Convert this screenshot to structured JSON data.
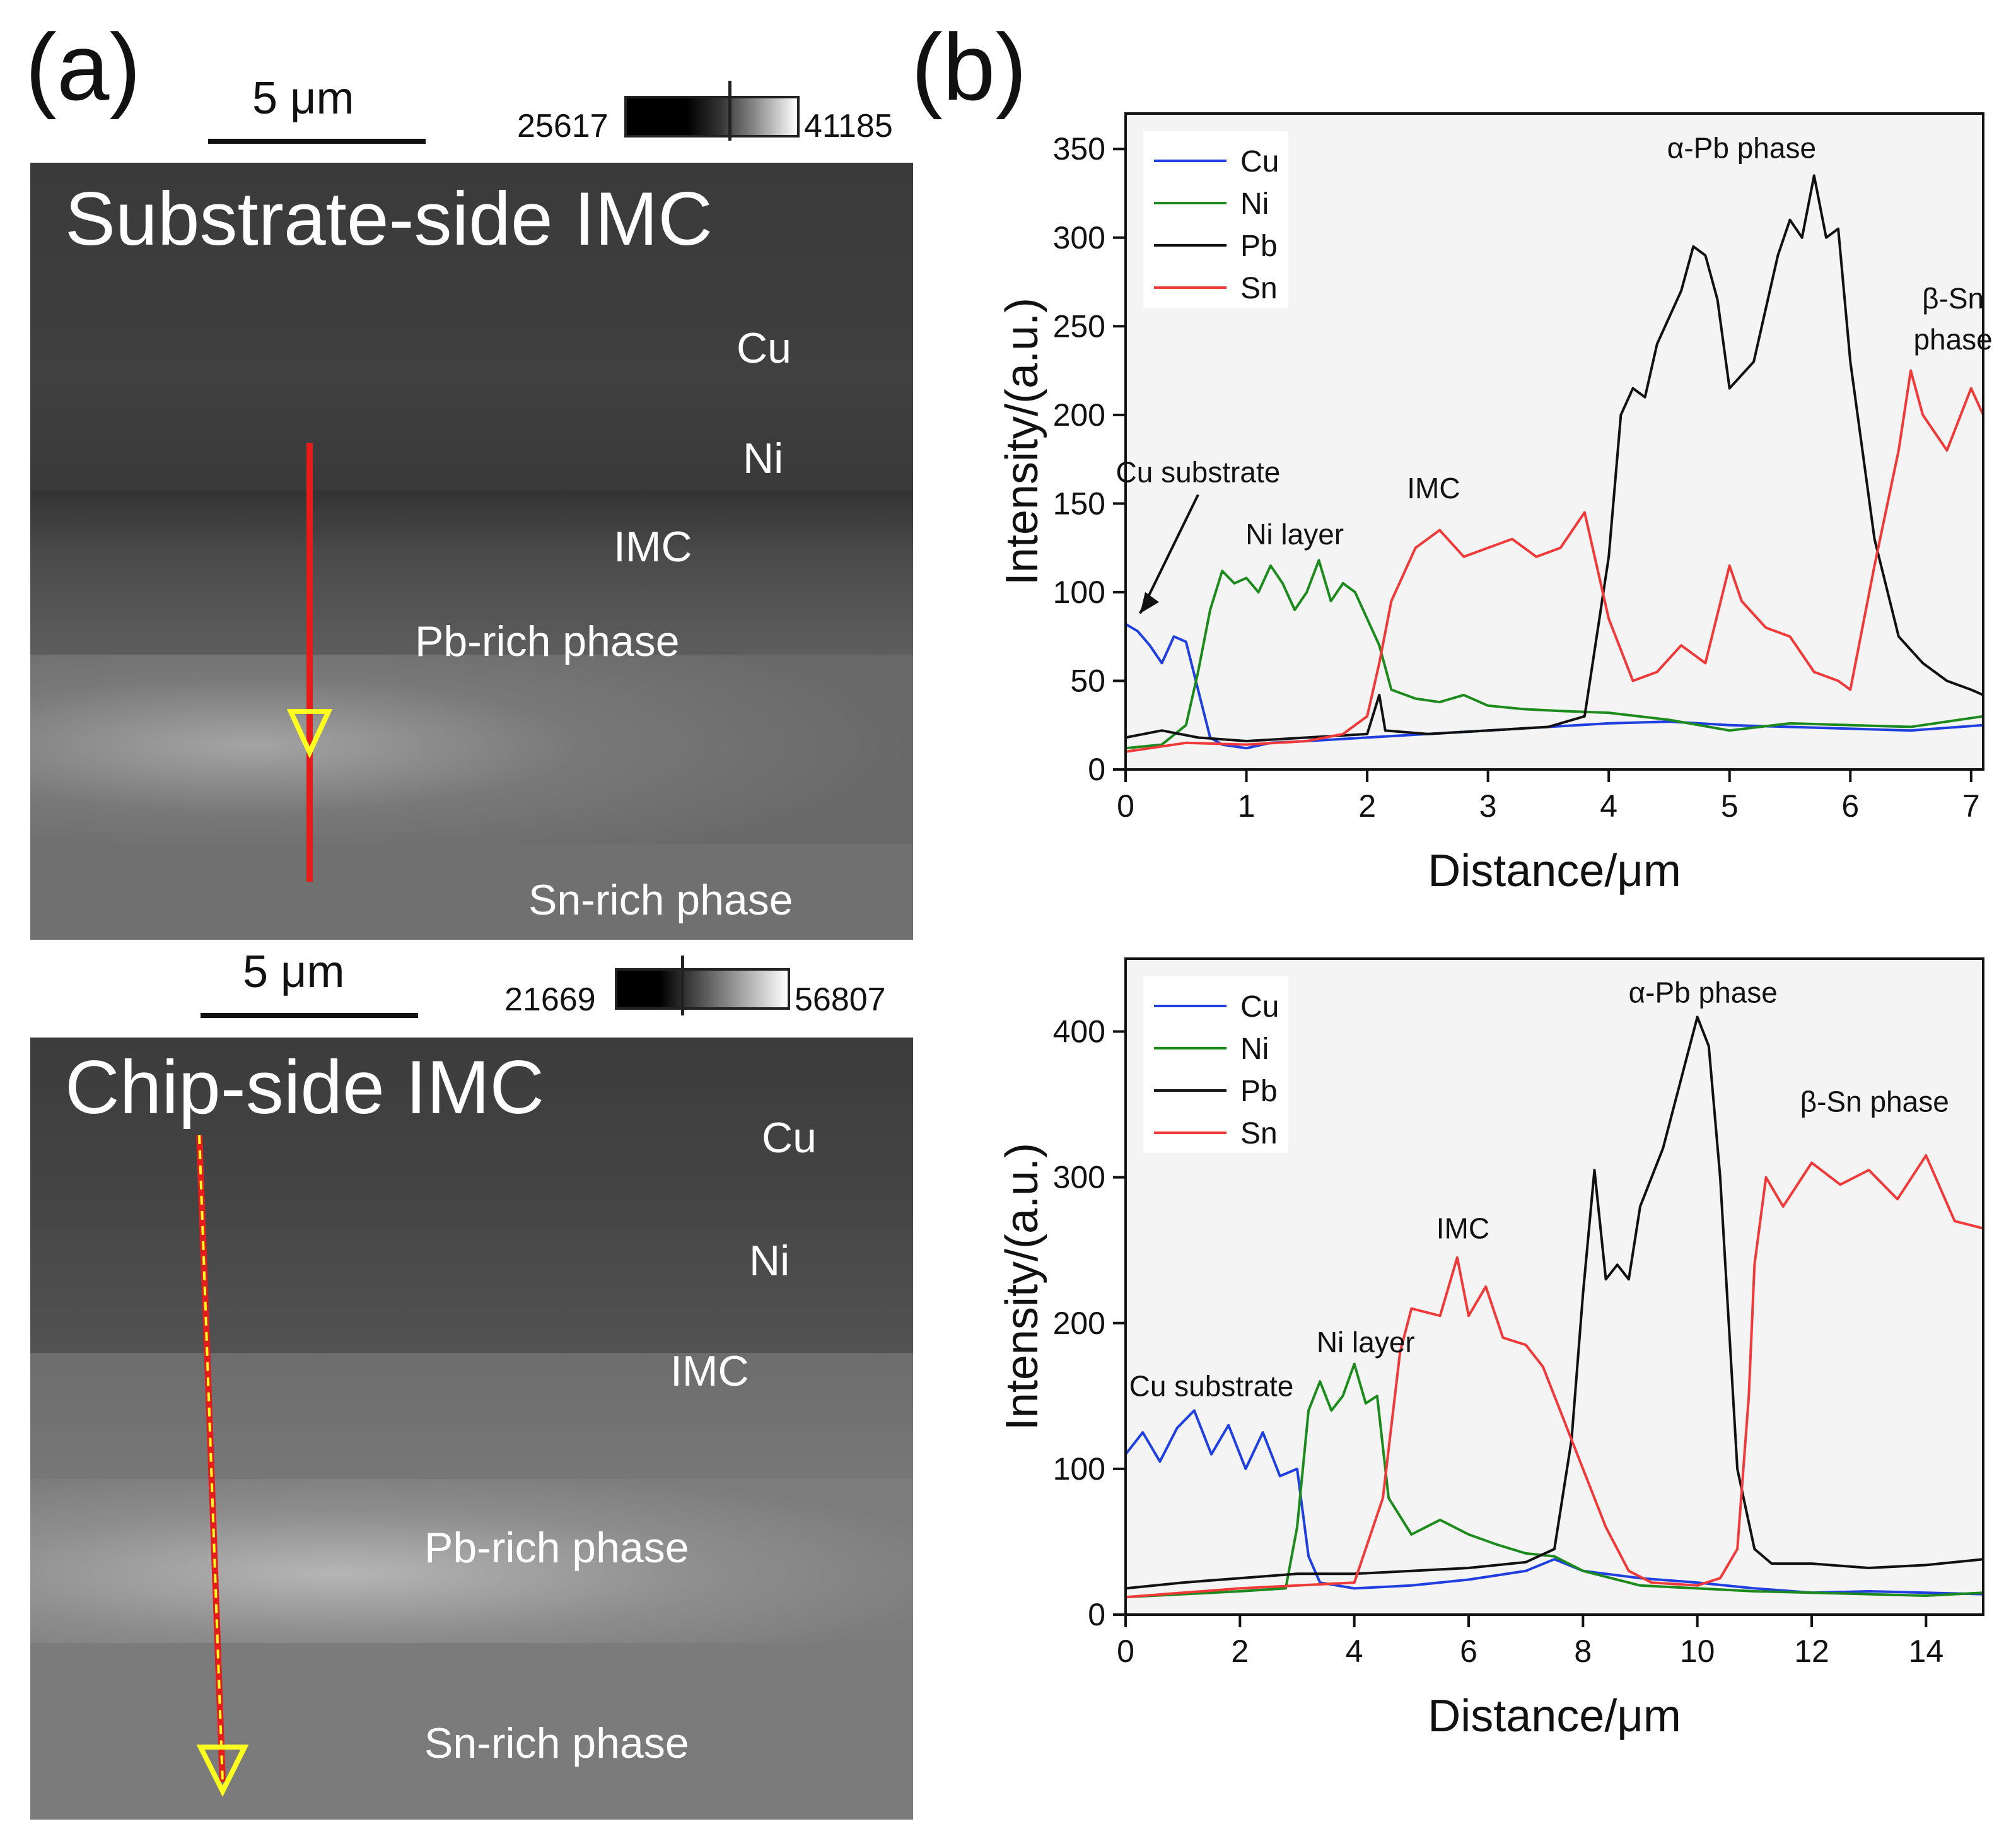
{
  "panel_a": {
    "label": "(a)",
    "top": {
      "scalebar": "5 μm",
      "colorbar_min": "25617",
      "colorbar_max": "41185",
      "title": "Substrate-side IMC",
      "labels": {
        "cu": "Cu",
        "ni": "Ni",
        "imc": "IMC",
        "pb": "Pb-rich phase",
        "sn": "Sn-rich phase"
      }
    },
    "bottom": {
      "scalebar": "5 μm",
      "colorbar_min": "21669",
      "colorbar_max": "56807",
      "title": "Chip-side IMC",
      "labels": {
        "cu": "Cu",
        "ni": "Ni",
        "imc": "IMC",
        "pb": "Pb-rich phase",
        "sn": "Sn-rich phase"
      }
    }
  },
  "panel_b": {
    "label": "(b)"
  },
  "chart_data": [
    {
      "type": "line",
      "xlabel": "Distance/μm",
      "ylabel": "Intensity/(a.u.)",
      "xlim": [
        0,
        7.1
      ],
      "ylim": [
        0,
        370
      ],
      "xticks": [
        "0",
        "1",
        "2",
        "3",
        "4",
        "5",
        "6",
        "7"
      ],
      "yticks": [
        "0",
        "50",
        "100",
        "150",
        "200",
        "250",
        "300",
        "350"
      ],
      "grid": false,
      "legend": "top-left",
      "colors": {
        "Cu": "#1f3fe0",
        "Ni": "#1c8a1c",
        "Pb": "#111111",
        "Sn": "#f03a3a"
      },
      "annotations": [
        {
          "text": "Cu substrate",
          "x": 0.6,
          "y": 162
        },
        {
          "text": "Ni layer",
          "x": 1.4,
          "y": 127
        },
        {
          "text": "IMC",
          "x": 2.55,
          "y": 153
        },
        {
          "text": "α-Pb phase",
          "x": 5.1,
          "y": 345
        },
        {
          "text": "β-Sn",
          "x": 6.85,
          "y": 260
        },
        {
          "text": "phase",
          "x": 6.85,
          "y": 237
        }
      ],
      "series": [
        {
          "name": "Cu",
          "x": [
            0,
            0.1,
            0.2,
            0.3,
            0.4,
            0.5,
            0.6,
            0.7,
            0.8,
            1.0,
            1.2,
            1.5,
            2.0,
            2.5,
            3.0,
            3.5,
            4.0,
            4.5,
            5.0,
            5.5,
            6.0,
            6.5,
            7.1
          ],
          "values": [
            82,
            78,
            70,
            60,
            75,
            72,
            45,
            18,
            14,
            12,
            15,
            16,
            18,
            20,
            22,
            24,
            26,
            27,
            25,
            24,
            23,
            22,
            25
          ]
        },
        {
          "name": "Ni",
          "x": [
            0,
            0.3,
            0.5,
            0.6,
            0.7,
            0.8,
            0.9,
            1.0,
            1.1,
            1.2,
            1.3,
            1.4,
            1.5,
            1.6,
            1.7,
            1.8,
            1.9,
            2.0,
            2.1,
            2.2,
            2.4,
            2.6,
            2.8,
            3.0,
            3.3,
            3.6,
            4.0,
            4.5,
            5.0,
            5.5,
            6.0,
            6.5,
            7.1
          ],
          "values": [
            12,
            14,
            25,
            55,
            90,
            112,
            105,
            108,
            100,
            115,
            105,
            90,
            100,
            118,
            95,
            105,
            100,
            85,
            70,
            45,
            40,
            38,
            42,
            36,
            34,
            33,
            32,
            28,
            22,
            26,
            25,
            24,
            30
          ]
        },
        {
          "name": "Pb",
          "x": [
            0,
            0.3,
            0.6,
            1.0,
            1.5,
            2.0,
            2.1,
            2.15,
            2.5,
            3.0,
            3.5,
            3.8,
            4.0,
            4.1,
            4.2,
            4.3,
            4.4,
            4.6,
            4.7,
            4.8,
            4.9,
            5.0,
            5.2,
            5.4,
            5.5,
            5.6,
            5.7,
            5.8,
            5.9,
            6.0,
            6.2,
            6.4,
            6.6,
            6.8,
            7.0,
            7.1
          ],
          "values": [
            18,
            22,
            18,
            16,
            18,
            20,
            42,
            22,
            20,
            22,
            24,
            30,
            120,
            200,
            215,
            210,
            240,
            270,
            295,
            290,
            265,
            215,
            230,
            290,
            310,
            300,
            335,
            300,
            305,
            230,
            130,
            75,
            60,
            50,
            45,
            42
          ]
        },
        {
          "name": "Sn",
          "x": [
            0,
            0.5,
            1.0,
            1.5,
            1.8,
            2.0,
            2.1,
            2.2,
            2.3,
            2.4,
            2.5,
            2.6,
            2.8,
            3.0,
            3.2,
            3.4,
            3.6,
            3.8,
            4.0,
            4.2,
            4.4,
            4.6,
            4.8,
            5.0,
            5.1,
            5.3,
            5.5,
            5.7,
            5.9,
            6.0,
            6.2,
            6.4,
            6.5,
            6.6,
            6.8,
            7.0,
            7.1
          ],
          "values": [
            10,
            15,
            14,
            16,
            20,
            30,
            60,
            95,
            110,
            125,
            130,
            135,
            120,
            125,
            130,
            120,
            125,
            145,
            85,
            50,
            55,
            70,
            60,
            115,
            95,
            80,
            75,
            55,
            50,
            45,
            115,
            180,
            225,
            200,
            180,
            215,
            200
          ]
        }
      ]
    },
    {
      "type": "line",
      "xlabel": "Distance/μm",
      "ylabel": "Intensity/(a.u.)",
      "xlim": [
        0,
        15
      ],
      "ylim": [
        0,
        450
      ],
      "xticks": [
        "0",
        "2",
        "4",
        "6",
        "8",
        "10",
        "12",
        "14"
      ],
      "yticks": [
        "0",
        "100",
        "200",
        "300",
        "400"
      ],
      "grid": false,
      "legend": "top-left",
      "colors": {
        "Cu": "#1f3fe0",
        "Ni": "#1c8a1c",
        "Pb": "#111111",
        "Sn": "#f03a3a"
      },
      "annotations": [
        {
          "text": "Cu substrate",
          "x": 1.5,
          "y": 150
        },
        {
          "text": "Ni layer",
          "x": 4.2,
          "y": 180
        },
        {
          "text": "IMC",
          "x": 5.9,
          "y": 258
        },
        {
          "text": "α-Pb phase",
          "x": 10.1,
          "y": 420
        },
        {
          "text": "β-Sn phase",
          "x": 13.1,
          "y": 345
        }
      ],
      "series": [
        {
          "name": "Cu",
          "x": [
            0,
            0.3,
            0.6,
            0.9,
            1.2,
            1.5,
            1.8,
            2.1,
            2.4,
            2.7,
            3.0,
            3.2,
            3.4,
            4.0,
            5.0,
            6.0,
            7.0,
            7.5,
            8.0,
            9.0,
            10.0,
            11.0,
            12.0,
            13.0,
            14.0,
            15.0
          ],
          "values": [
            110,
            125,
            105,
            128,
            140,
            110,
            130,
            100,
            125,
            95,
            100,
            40,
            22,
            18,
            20,
            24,
            30,
            38,
            30,
            25,
            22,
            18,
            15,
            16,
            15,
            14
          ]
        },
        {
          "name": "Ni",
          "x": [
            0,
            1.0,
            2.0,
            2.8,
            3.0,
            3.2,
            3.4,
            3.6,
            3.8,
            4.0,
            4.2,
            4.4,
            4.6,
            5.0,
            5.5,
            6.0,
            6.5,
            7.0,
            7.5,
            8.0,
            9.0,
            10.0,
            11.0,
            12.0,
            13.0,
            14.0,
            15.0
          ],
          "values": [
            12,
            14,
            16,
            18,
            60,
            140,
            160,
            140,
            150,
            172,
            145,
            150,
            80,
            55,
            65,
            55,
            48,
            42,
            40,
            30,
            20,
            18,
            16,
            15,
            14,
            13,
            15
          ]
        },
        {
          "name": "Pb",
          "x": [
            0,
            1.0,
            2.0,
            3.0,
            4.0,
            5.0,
            6.0,
            7.0,
            7.5,
            7.8,
            8.0,
            8.2,
            8.4,
            8.6,
            8.8,
            9.0,
            9.4,
            9.8,
            10.0,
            10.2,
            10.4,
            10.7,
            11.0,
            11.3,
            12.0,
            13.0,
            14.0,
            15.0
          ],
          "values": [
            18,
            22,
            25,
            28,
            28,
            30,
            32,
            36,
            45,
            120,
            220,
            305,
            230,
            240,
            230,
            280,
            320,
            380,
            410,
            390,
            300,
            100,
            45,
            35,
            35,
            32,
            34,
            38
          ]
        },
        {
          "name": "Sn",
          "x": [
            0,
            1.0,
            2.0,
            3.0,
            4.0,
            4.5,
            4.8,
            5.0,
            5.5,
            5.8,
            6.0,
            6.3,
            6.6,
            7.0,
            7.3,
            7.6,
            8.0,
            8.4,
            8.8,
            9.2,
            10.0,
            10.4,
            10.7,
            10.9,
            11.0,
            11.2,
            11.5,
            12.0,
            12.5,
            13.0,
            13.5,
            14.0,
            14.5,
            15.0
          ],
          "values": [
            12,
            15,
            18,
            20,
            22,
            80,
            180,
            210,
            205,
            245,
            205,
            225,
            190,
            185,
            170,
            140,
            100,
            60,
            30,
            22,
            20,
            25,
            45,
            150,
            240,
            300,
            280,
            310,
            295,
            305,
            285,
            315,
            270,
            265
          ]
        }
      ]
    }
  ]
}
